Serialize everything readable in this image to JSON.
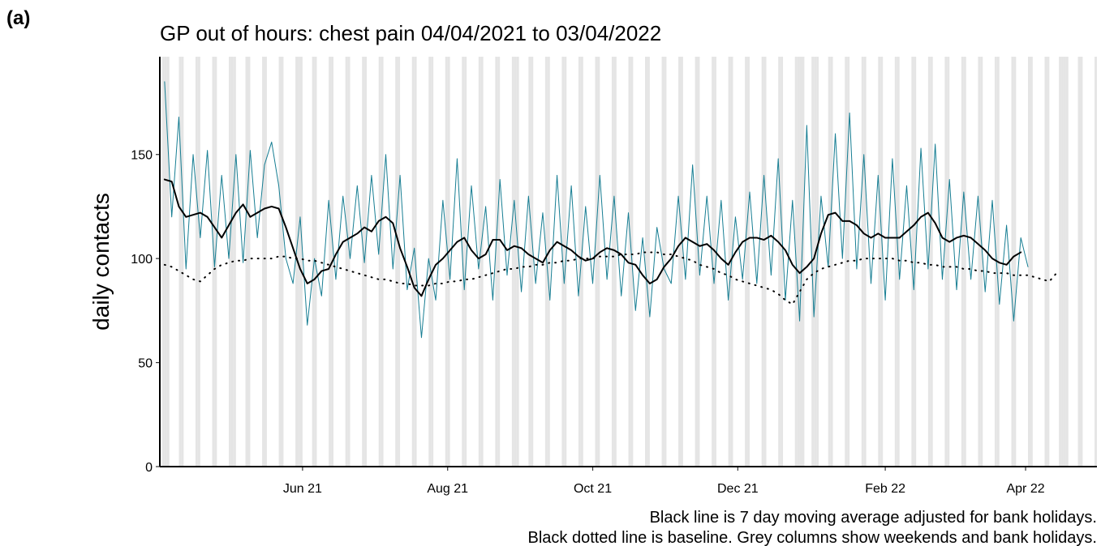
{
  "chart_data": {
    "type": "line",
    "panel_label": "(a)",
    "title": "GP out of hours: chest pain 04/04/2021 to 03/04/2022",
    "ylabel": "daily contacts",
    "footnotes": [
      "Black line is 7 day moving average adjusted for bank holidays.",
      "Black dotted line is baseline. Grey columns show weekends and bank holidays."
    ],
    "x": [
      "2021-04-04",
      "2021-04-07",
      "2021-04-10",
      "2021-04-13",
      "2021-04-16",
      "2021-04-19",
      "2021-04-22",
      "2021-04-25",
      "2021-04-28",
      "2021-05-01",
      "2021-05-04",
      "2021-05-07",
      "2021-05-10",
      "2021-05-13",
      "2021-05-16",
      "2021-05-19",
      "2021-05-22",
      "2021-05-25",
      "2021-05-28",
      "2021-05-31",
      "2021-06-03",
      "2021-06-06",
      "2021-06-09",
      "2021-06-12",
      "2021-06-15",
      "2021-06-18",
      "2021-06-21",
      "2021-06-24",
      "2021-06-27",
      "2021-06-30",
      "2021-07-03",
      "2021-07-06",
      "2021-07-09",
      "2021-07-12",
      "2021-07-15",
      "2021-07-18",
      "2021-07-21",
      "2021-07-24",
      "2021-07-27",
      "2021-07-30",
      "2021-08-02",
      "2021-08-05",
      "2021-08-08",
      "2021-08-11",
      "2021-08-14",
      "2021-08-17",
      "2021-08-20",
      "2021-08-23",
      "2021-08-26",
      "2021-08-29",
      "2021-09-01",
      "2021-09-04",
      "2021-09-07",
      "2021-09-10",
      "2021-09-13",
      "2021-09-16",
      "2021-09-19",
      "2021-09-22",
      "2021-09-25",
      "2021-09-28",
      "2021-10-01",
      "2021-10-04",
      "2021-10-07",
      "2021-10-10",
      "2021-10-13",
      "2021-10-16",
      "2021-10-19",
      "2021-10-22",
      "2021-10-25",
      "2021-10-28",
      "2021-10-31",
      "2021-11-03",
      "2021-11-06",
      "2021-11-09",
      "2021-11-12",
      "2021-11-15",
      "2021-11-18",
      "2021-11-21",
      "2021-11-24",
      "2021-11-27",
      "2021-11-30",
      "2021-12-03",
      "2021-12-06",
      "2021-12-09",
      "2021-12-12",
      "2021-12-15",
      "2021-12-18",
      "2021-12-21",
      "2021-12-24",
      "2021-12-27",
      "2021-12-30",
      "2022-01-02",
      "2022-01-05",
      "2022-01-08",
      "2022-01-11",
      "2022-01-14",
      "2022-01-17",
      "2022-01-20",
      "2022-01-23",
      "2022-01-26",
      "2022-01-29",
      "2022-02-01",
      "2022-02-04",
      "2022-02-07",
      "2022-02-10",
      "2022-02-13",
      "2022-02-16",
      "2022-02-19",
      "2022-02-22",
      "2022-02-25",
      "2022-02-28",
      "2022-03-03",
      "2022-03-06",
      "2022-03-09",
      "2022-03-12",
      "2022-03-15",
      "2022-03-18",
      "2022-03-21",
      "2022-03-24",
      "2022-03-27",
      "2022-03-30",
      "2022-04-02",
      "2022-04-05",
      "2022-04-08",
      "2022-04-11",
      "2022-04-14"
    ],
    "series": [
      {
        "color": "#177e93",
        "width": 1,
        "dash": "none",
        "values": [
          185,
          120,
          168,
          95,
          150,
          110,
          152,
          96,
          140,
          100,
          150,
          98,
          152,
          110,
          145,
          156,
          135,
          100,
          88,
          120,
          68,
          100,
          82,
          128,
          90,
          130,
          100,
          135,
          98,
          140,
          102,
          150,
          95,
          140,
          85,
          105,
          62,
          100,
          80,
          128,
          90,
          148,
          85,
          135,
          95,
          125,
          80,
          138,
          92,
          128,
          84,
          130,
          88,
          122,
          80,
          140,
          88,
          135,
          82,
          125,
          88,
          140,
          90,
          130,
          82,
          122,
          75,
          110,
          72,
          115,
          95,
          88,
          130,
          90,
          145,
          92,
          130,
          88,
          128,
          80,
          120,
          90,
          132,
          88,
          140,
          92,
          148,
          80,
          128,
          70,
          164,
          72,
          130,
          96,
          160,
          100,
          170,
          95,
          150,
          88,
          140,
          80,
          148,
          90,
          135,
          85,
          153,
          95,
          155,
          90,
          138,
          85,
          132,
          90,
          130,
          84,
          128,
          78,
          116,
          70,
          110,
          96,
          null,
          null,
          null,
          null
        ]
      },
      {
        "color": "#000000",
        "width": 2,
        "dash": "none",
        "values": [
          138,
          137,
          125,
          120,
          121,
          122,
          120,
          115,
          110,
          116,
          122,
          126,
          120,
          122,
          124,
          125,
          124,
          115,
          105,
          95,
          88,
          90,
          94,
          95,
          102,
          108,
          110,
          112,
          115,
          113,
          118,
          120,
          117,
          105,
          96,
          86,
          82,
          90,
          97,
          100,
          104,
          108,
          110,
          104,
          100,
          102,
          109,
          109,
          104,
          106,
          105,
          102,
          100,
          98,
          104,
          108,
          106,
          104,
          101,
          99,
          100,
          103,
          105,
          104,
          102,
          98,
          97,
          92,
          88,
          90,
          96,
          100,
          106,
          110,
          108,
          106,
          107,
          104,
          100,
          97,
          103,
          108,
          110,
          110,
          109,
          111,
          108,
          104,
          97,
          93,
          96,
          100,
          112,
          121,
          122,
          118,
          118,
          116,
          112,
          110,
          112,
          110,
          110,
          110,
          113,
          116,
          120,
          122,
          117,
          110,
          108,
          110,
          111,
          110,
          107,
          104,
          100,
          98,
          97,
          101,
          103,
          null,
          null,
          null,
          null,
          null
        ]
      },
      {
        "color": "#000000",
        "width": 2,
        "dash": "1 7",
        "values": [
          97,
          96,
          94,
          92,
          90,
          89,
          92,
          95,
          97,
          98,
          99,
          99,
          100,
          100,
          100,
          100,
          101,
          101,
          100,
          100,
          99,
          99,
          98,
          97,
          96,
          95,
          94,
          93,
          92,
          91,
          90,
          90,
          89,
          88,
          88,
          87,
          87,
          87,
          88,
          88,
          89,
          89,
          90,
          90,
          91,
          92,
          93,
          94,
          95,
          95,
          96,
          96,
          97,
          97,
          98,
          98,
          99,
          99,
          100,
          100,
          100,
          101,
          101,
          101,
          102,
          102,
          102,
          103,
          103,
          103,
          102,
          102,
          101,
          100,
          99,
          97,
          96,
          95,
          93,
          92,
          90,
          89,
          88,
          87,
          86,
          85,
          83,
          80,
          78,
          84,
          90,
          93,
          95,
          96,
          97,
          98,
          99,
          99,
          100,
          100,
          100,
          100,
          100,
          99,
          99,
          98,
          98,
          97,
          97,
          96,
          96,
          96,
          95,
          95,
          94,
          94,
          93,
          93,
          93,
          92,
          92,
          92,
          91,
          90,
          89,
          93
        ]
      }
    ],
    "bank_holidays": [
      "2021-04-05",
      "2021-05-03",
      "2021-05-31",
      "2021-08-30",
      "2021-12-27",
      "2021-12-28",
      "2022-01-03",
      "2022-04-15",
      "2022-04-18"
    ],
    "shade_color": "#e5e5e5",
    "xlim": [
      "2021-04-02",
      "2022-05-01"
    ],
    "xticks": [
      {
        "value": "2021-06-01",
        "label": "Jun 21"
      },
      {
        "value": "2021-08-01",
        "label": "Aug 21"
      },
      {
        "value": "2021-10-01",
        "label": "Oct 21"
      },
      {
        "value": "2021-12-01",
        "label": "Dec 21"
      },
      {
        "value": "2022-02-01",
        "label": "Feb 22"
      },
      {
        "value": "2022-04-01",
        "label": "Apr 22"
      }
    ],
    "ylim": [
      0,
      197
    ],
    "yticks": [
      0,
      50,
      100,
      150
    ],
    "grid": false
  }
}
